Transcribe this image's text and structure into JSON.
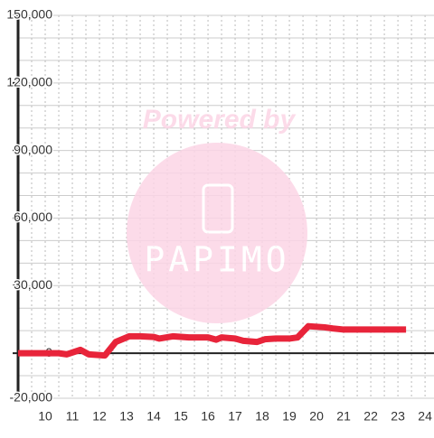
{
  "chart_data": {
    "type": "line",
    "x": [
      9,
      10.5,
      10.8,
      11.3,
      11.6,
      12.2,
      12.6,
      13.1,
      13.5,
      14,
      14.2,
      14.7,
      15.3,
      16,
      16.3,
      16.5,
      17,
      17.3,
      17.8,
      18.1,
      18.5,
      19,
      19.3,
      19.7,
      20.3,
      20.6,
      21,
      23.3
    ],
    "series": [
      {
        "color": "#e8243a",
        "values": [
          0,
          0,
          -500,
          1500,
          -500,
          -1000,
          5000,
          7500,
          7500,
          7200,
          6500,
          7500,
          7000,
          7000,
          6000,
          7000,
          6500,
          5500,
          5000,
          6200,
          6500,
          6500,
          7000,
          12000,
          11500,
          11000,
          10500,
          10500
        ]
      }
    ],
    "xlim": [
      9,
      24.33
    ],
    "xticks": [
      10,
      11,
      12,
      13,
      14,
      15,
      16,
      17,
      18,
      19,
      20,
      21,
      22,
      23,
      24
    ],
    "x_minor_ticks": [
      9.5,
      10.5,
      11.5,
      12.5,
      13.5,
      14.5,
      15.5,
      16.5,
      17.5,
      18.5,
      19.5,
      20.5,
      21.5,
      22.5,
      23.5
    ],
    "ylim": [
      -20000,
      150000
    ],
    "yticks": [
      {
        "value": -20000,
        "label": "-20,000"
      },
      0,
      {
        "value": 30000,
        "label": "30,000"
      },
      {
        "value": 60000,
        "label": "60,000"
      },
      {
        "value": 90000,
        "label": "90,000"
      },
      {
        "value": 120000,
        "label": "120,000"
      },
      {
        "value": 150000,
        "label": "150,000"
      }
    ],
    "y_minor_ticks": [
      -10000,
      10000,
      20000,
      40000,
      50000,
      70000,
      80000,
      100000,
      110000,
      130000,
      140000
    ],
    "grid": true,
    "watermark": [
      "Powered by",
      "PAPIMO"
    ]
  }
}
